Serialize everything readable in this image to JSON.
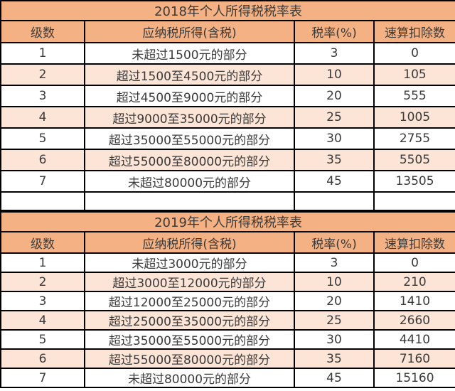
{
  "colors": {
    "header_bg": "#F4B183",
    "alt_row_bg": "#FCE4D6",
    "row_bg": "#FFFFFF",
    "border": "#000000",
    "text": "#3A3A3A"
  },
  "tables": [
    {
      "title": "2018年个人所得税税率表",
      "columns": [
        "级数",
        "应纳税所得(含税)",
        "税率(%)",
        "速算扣除数"
      ],
      "rows": [
        [
          "1",
          "未超过1500元的部分",
          "3",
          "0"
        ],
        [
          "2",
          "超过1500至4500元的部分",
          "10",
          "105"
        ],
        [
          "3",
          "超过4500至9000元的部分",
          "20",
          "555"
        ],
        [
          "4",
          "超过9000至35000元的部分",
          "25",
          "1005"
        ],
        [
          "5",
          "超过35000至55000元的部分",
          "30",
          "2755"
        ],
        [
          "6",
          "超过55000至80000元的部分",
          "35",
          "5505"
        ],
        [
          "7",
          "未超过80000元的部分",
          "45",
          "13505"
        ],
        [
          "",
          "",
          "",
          ""
        ]
      ]
    },
    {
      "title": "2019年个人所得税税率表",
      "columns": [
        "级数",
        "应纳税所得(含税)",
        "税率(%)",
        "速算扣除数"
      ],
      "rows": [
        [
          "1",
          "未超过3000元的部分",
          "3",
          "0"
        ],
        [
          "2",
          "超过3000至12000元的部分",
          "10",
          "210"
        ],
        [
          "3",
          "超过12000至25000元的部分",
          "20",
          "1410"
        ],
        [
          "4",
          "超过25000至35000元的部分",
          "25",
          "2660"
        ],
        [
          "5",
          "超过35000至55000元的部分",
          "30",
          "4410"
        ],
        [
          "6",
          "超过55000至80000元的部分",
          "35",
          "7160"
        ],
        [
          "7",
          "未超过80000元的部分",
          "45",
          "15160"
        ]
      ]
    }
  ]
}
